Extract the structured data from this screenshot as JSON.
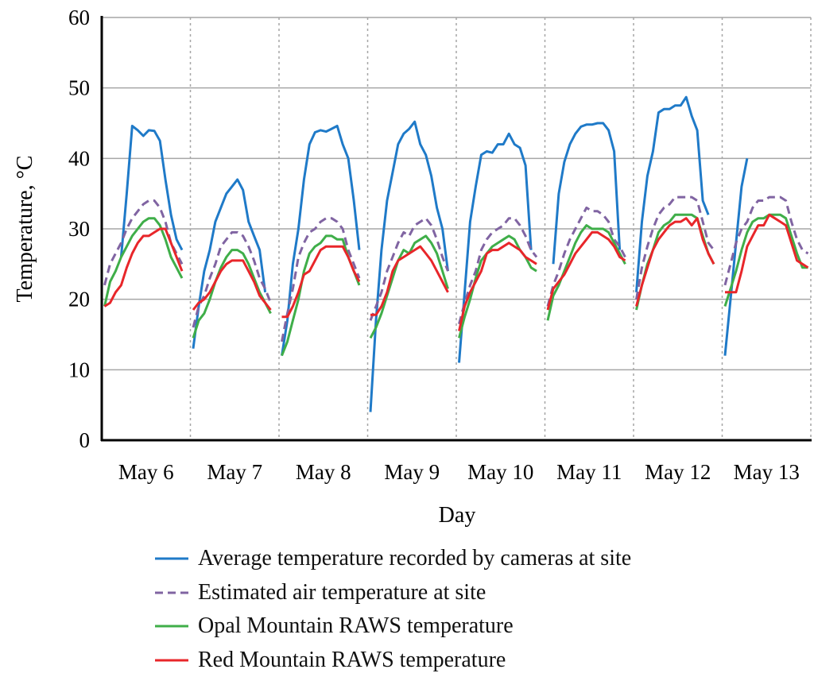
{
  "chart_data": {
    "type": "line",
    "xlabel": "Day",
    "ylabel": "Temperature, °C",
    "ylim": [
      0,
      60
    ],
    "yticks": [
      0,
      10,
      20,
      30,
      40,
      50,
      60
    ],
    "categories": [
      "May 6",
      "May 7",
      "May 8",
      "May 9",
      "May 10",
      "May 11",
      "May 12",
      "May 13"
    ],
    "grid": "horizontal solid, vertical dotted day separators",
    "legend_position": "bottom",
    "series": [
      {
        "name": "Average temperature recorded by cameras at site",
        "color": "#1f7ac8",
        "dash": false,
        "values": [
          [
            null,
            null,
            null,
            26,
            35,
            44.6,
            44,
            43.2,
            44,
            43.9,
            42.5,
            37,
            32,
            28.5,
            27,
            null
          ],
          [
            13,
            19,
            24,
            27,
            31,
            33,
            35,
            36,
            37,
            35.5,
            31,
            29,
            27,
            21,
            null,
            null
          ],
          [
            12,
            17,
            25,
            30,
            37,
            42,
            43.7,
            44,
            43.8,
            44.2,
            44.6,
            42,
            40,
            34,
            27,
            null
          ],
          [
            4,
            17,
            27,
            34,
            38,
            42,
            43.5,
            44.2,
            45.2,
            42,
            40.5,
            37.5,
            33,
            30,
            24,
            null
          ],
          [
            11,
            21,
            31,
            36,
            40.5,
            41,
            40.8,
            42,
            42,
            43.5,
            42,
            41.5,
            39,
            27,
            null,
            null
          ],
          [
            null,
            25,
            35,
            39.5,
            42,
            43.5,
            44.5,
            44.8,
            44.8,
            45,
            45,
            44,
            41,
            27,
            null,
            null
          ],
          [
            21,
            31,
            37.5,
            41,
            46.5,
            47,
            47,
            47.5,
            47.5,
            48.7,
            46,
            44,
            34,
            32,
            null,
            null
          ],
          [
            12,
            20,
            28,
            36,
            40,
            null,
            null,
            null,
            null,
            null,
            null,
            null,
            null,
            null,
            null,
            null
          ]
        ]
      },
      {
        "name": "Estimated air temperature at site",
        "color": "#8064a2",
        "dash": true,
        "values": [
          [
            22,
            25,
            26.5,
            28,
            30,
            31.5,
            32.5,
            33.5,
            34,
            34,
            33,
            31,
            28,
            26.5,
            25,
            null
          ],
          [
            16,
            19,
            20.5,
            23,
            25,
            27.5,
            28.5,
            29.5,
            29.5,
            29,
            27.5,
            25.5,
            23,
            21.5,
            19.5,
            null
          ],
          [
            14,
            18,
            21.5,
            26,
            28,
            29.5,
            30,
            31,
            31.5,
            31.5,
            31,
            30,
            27,
            25,
            23,
            null
          ],
          [
            17,
            19,
            21,
            24,
            26,
            28,
            29.5,
            29,
            30.5,
            31,
            31.5,
            30.5,
            28.5,
            26,
            24,
            null
          ],
          [
            16.5,
            19.5,
            22,
            24,
            27,
            28.5,
            29.5,
            30,
            30.5,
            31.5,
            31.5,
            30.5,
            29,
            27,
            26,
            null
          ],
          [
            19,
            22,
            24,
            26.5,
            28.5,
            30,
            31.5,
            33,
            32.5,
            32.5,
            32,
            31,
            28.5,
            27.5,
            26,
            null
          ],
          [
            20,
            24.5,
            27.5,
            30,
            32,
            33,
            33.5,
            34.5,
            34.5,
            34.5,
            34.5,
            34,
            31,
            28,
            27,
            null
          ],
          [
            22,
            25,
            28,
            30,
            31,
            33,
            34,
            34,
            34.5,
            34.5,
            34.5,
            34,
            31,
            28.5,
            27,
            26.5
          ]
        ]
      },
      {
        "name": "Opal Mountain RAWS temperature",
        "color": "#3fae49",
        "dash": false,
        "values": [
          [
            19,
            22.5,
            24,
            26,
            27.5,
            29,
            30,
            31,
            31.5,
            31.5,
            30.5,
            28.5,
            26,
            24.5,
            23,
            null
          ],
          [
            14.5,
            17,
            18,
            20,
            22.5,
            24.5,
            26,
            27,
            27,
            26.5,
            25,
            23,
            21,
            19.5,
            18,
            null
          ],
          [
            12,
            14,
            17,
            20,
            24,
            26.5,
            27.5,
            28,
            29,
            29,
            28.5,
            28.5,
            26,
            24,
            22,
            null
          ],
          [
            14.5,
            16,
            18,
            20.5,
            23,
            25.5,
            27,
            26.5,
            28,
            28.5,
            29,
            28,
            26.5,
            24,
            21.5,
            null
          ],
          [
            14.5,
            17.5,
            20,
            23,
            25.5,
            26.5,
            27.5,
            28,
            28.5,
            29,
            28.5,
            27,
            26,
            24.5,
            24,
            null
          ],
          [
            17,
            20.5,
            22,
            24,
            26,
            28,
            29.5,
            30.5,
            30,
            30,
            30,
            29.5,
            28,
            26.5,
            25,
            null
          ],
          [
            18.5,
            22,
            25,
            27,
            29.5,
            30.5,
            31,
            32,
            32,
            32,
            32,
            31.5,
            29,
            26.5,
            25,
            null
          ],
          [
            19,
            21.5,
            24,
            27,
            29.5,
            31,
            31.5,
            31.5,
            32,
            32,
            32,
            31.5,
            29,
            26.5,
            24.5,
            24.5
          ]
        ]
      },
      {
        "name": "Red Mountain RAWS temperature",
        "color": "#e8262a",
        "dash": false,
        "values": [
          [
            19,
            19.5,
            21,
            22,
            24.5,
            26.5,
            28,
            29,
            29,
            29.5,
            30,
            30,
            28,
            26,
            24,
            null
          ],
          [
            18.5,
            19.5,
            20,
            21,
            22.5,
            24,
            25,
            25.5,
            25.5,
            25.5,
            24,
            22.5,
            20.5,
            19.5,
            18.5,
            null
          ],
          [
            17.5,
            17.5,
            19,
            21,
            23.5,
            24,
            25.5,
            27,
            27.5,
            27.5,
            27.5,
            27.5,
            26,
            24,
            22.5,
            null
          ],
          [
            17.8,
            17.8,
            19,
            21,
            24,
            25.5,
            26,
            26.5,
            27,
            27.5,
            26.5,
            25.5,
            24,
            22.5,
            21,
            null
          ],
          [
            15.5,
            19,
            21,
            22.5,
            24,
            26.5,
            27,
            27,
            27.5,
            28,
            27.5,
            27,
            26,
            25.5,
            25,
            null
          ],
          [
            18.5,
            21.5,
            22.5,
            23.5,
            25,
            26.5,
            27.5,
            28.5,
            29.5,
            29.5,
            29,
            28.5,
            27.5,
            26,
            25.5,
            null
          ],
          [
            19,
            22,
            24.5,
            27,
            28.5,
            29.5,
            30.5,
            31,
            31,
            31.5,
            30.5,
            31.5,
            28.5,
            26.5,
            25,
            null
          ],
          [
            21,
            21,
            21,
            24,
            27.5,
            29,
            30.5,
            30.5,
            32,
            31.5,
            31,
            30.5,
            28,
            25.5,
            25,
            24.5
          ]
        ]
      }
    ]
  }
}
